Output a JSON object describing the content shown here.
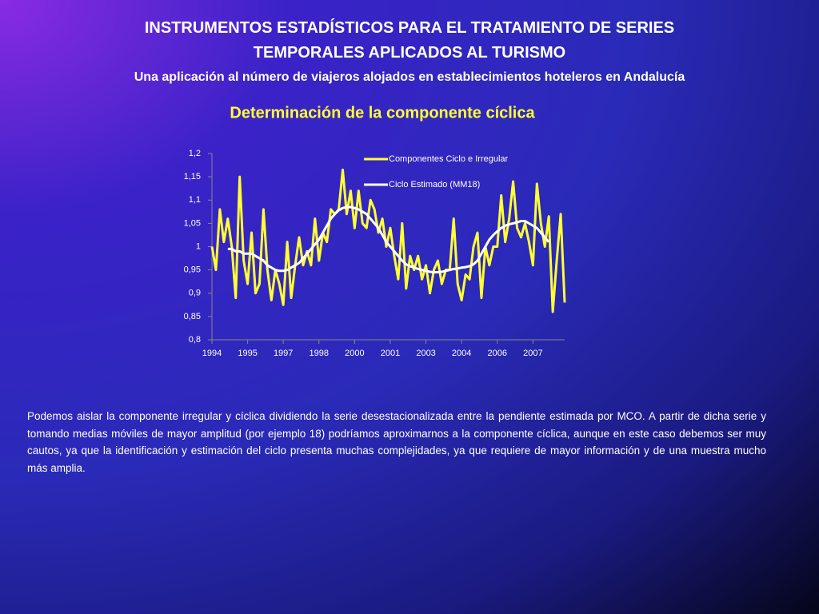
{
  "header": {
    "title_line1": "INSTRUMENTOS ESTADÍSTICOS PARA EL TRATAMIENTO DE SERIES",
    "title_line2": "TEMPORALES APLICADOS AL TURISMO",
    "subtitle": "Una aplicación al número de viajeros alojados en establecimientos hoteleros en Andalucía"
  },
  "chart_data": {
    "type": "line",
    "title": "Determinación de la componente cíclica",
    "categories": [
      "1994",
      null,
      null,
      null,
      null,
      null,
      null,
      null,
      null,
      "1995",
      null,
      null,
      null,
      null,
      null,
      null,
      null,
      null,
      "1997",
      null,
      null,
      null,
      null,
      null,
      null,
      null,
      null,
      "1998",
      null,
      null,
      null,
      null,
      null,
      null,
      null,
      null,
      "2000",
      null,
      null,
      null,
      null,
      null,
      null,
      null,
      null,
      "2001",
      null,
      null,
      null,
      null,
      null,
      null,
      null,
      null,
      "2003",
      null,
      null,
      null,
      null,
      null,
      null,
      null,
      null,
      "2004",
      null,
      null,
      null,
      null,
      null,
      null,
      null,
      null,
      "2006",
      null,
      null,
      null,
      null,
      null,
      null,
      null,
      null,
      "2007",
      null,
      null,
      null,
      null,
      null,
      null,
      null,
      null
    ],
    "series": [
      {
        "name": "Componentes Ciclo e Irregular",
        "color": "#ffff33",
        "values": [
          1.0,
          0.95,
          1.08,
          1.01,
          1.06,
          1.0,
          0.89,
          1.15,
          0.97,
          0.92,
          1.03,
          0.9,
          0.92,
          1.08,
          0.95,
          0.885,
          0.95,
          0.92,
          0.875,
          1.01,
          0.89,
          0.96,
          1.02,
          0.96,
          0.99,
          0.96,
          1.06,
          0.97,
          1.03,
          1.01,
          1.08,
          1.07,
          1.08,
          1.165,
          1.07,
          1.12,
          1.04,
          1.12,
          1.05,
          1.04,
          1.1,
          1.08,
          1.03,
          1.06,
          1.0,
          1.04,
          0.98,
          0.93,
          1.05,
          0.91,
          0.98,
          0.95,
          0.98,
          0.93,
          0.96,
          0.9,
          0.95,
          0.97,
          0.92,
          0.95,
          0.95,
          1.06,
          0.92,
          0.885,
          0.94,
          0.93,
          1.0,
          1.03,
          0.89,
          1.0,
          0.96,
          1.0,
          1.0,
          1.11,
          1.01,
          1.06,
          1.14,
          1.04,
          1.02,
          1.05,
          1.01,
          0.96,
          1.135,
          1.05,
          1.0,
          1.065,
          0.86,
          0.97,
          1.07,
          0.88
        ]
      },
      {
        "name": "Ciclo Estimado (MM18)",
        "color": "#ffffff",
        "values": [
          null,
          null,
          null,
          null,
          0.995,
          0.995,
          0.99,
          0.99,
          0.985,
          0.985,
          0.985,
          0.98,
          0.975,
          0.97,
          0.96,
          0.955,
          0.95,
          0.948,
          0.948,
          0.95,
          0.955,
          0.96,
          0.965,
          0.975,
          0.985,
          0.995,
          1.005,
          1.015,
          1.03,
          1.045,
          1.06,
          1.07,
          1.078,
          1.083,
          1.085,
          1.085,
          1.083,
          1.08,
          1.075,
          1.07,
          1.06,
          1.05,
          1.04,
          1.025,
          1.01,
          1.0,
          0.99,
          0.98,
          0.97,
          0.962,
          0.958,
          0.955,
          0.952,
          0.95,
          0.948,
          0.946,
          0.945,
          0.945,
          0.946,
          0.948,
          0.95,
          0.952,
          0.953,
          0.955,
          0.956,
          0.958,
          0.962,
          0.97,
          0.985,
          1.0,
          1.015,
          1.025,
          1.033,
          1.04,
          1.045,
          1.048,
          1.05,
          1.052,
          1.055,
          1.055,
          1.05,
          1.045,
          1.04,
          1.03,
          1.02,
          1.01,
          null,
          null,
          null,
          null
        ]
      }
    ],
    "ylim": [
      0.8,
      1.2
    ],
    "yticks": [
      {
        "value": 0.8,
        "label": "0,8"
      },
      {
        "value": 0.85,
        "label": "0,85"
      },
      {
        "value": 0.9,
        "label": "0,9"
      },
      {
        "value": 0.95,
        "label": "0,95"
      },
      1,
      {
        "value": 1.05,
        "label": "1,05"
      },
      {
        "value": 1.1,
        "label": "1,1"
      },
      {
        "value": 1.15,
        "label": "1,15"
      },
      {
        "value": 1.2,
        "label": "1,2"
      }
    ],
    "grid": false,
    "legend": "top-right"
  },
  "body_text": "Podemos aislar la componente irregular y cíclica dividiendo la serie desestacionalizada entre la pendiente estimada por MCO. A partir de dicha serie y tomando medias móviles de mayor amplitud (por ejemplo 18) podríamos aproximarnos a la componente cíclica, aunque en este caso debemos ser muy cautos, ya que la identificación y estimación del ciclo presenta muchas complejidades, ya que requiere de mayor información y de una muestra mucho más amplia."
}
